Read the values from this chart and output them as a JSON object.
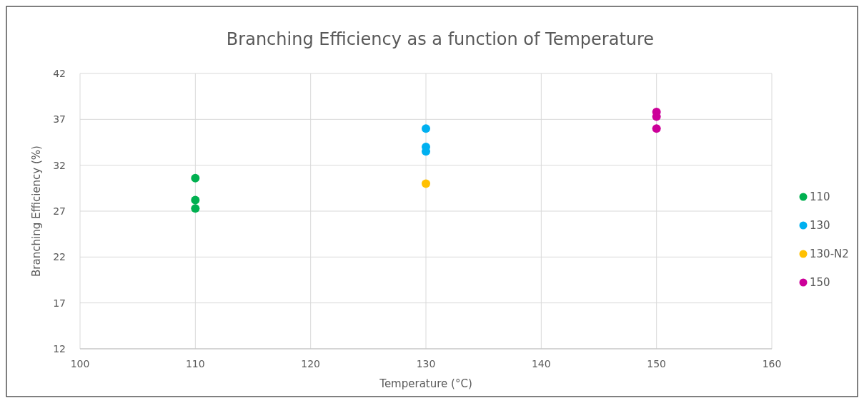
{
  "chart_data": {
    "type": "scatter",
    "title": "Branching Efficiency as a function of Temperature",
    "xlabel": "Temperature (°C)",
    "ylabel": "Branching Efficiency (%)",
    "xlim": [
      100,
      160
    ],
    "xticks": [
      100,
      110,
      120,
      130,
      140,
      150,
      160
    ],
    "ylim": [
      12,
      42
    ],
    "yticks": [
      12,
      17,
      22,
      27,
      32,
      37,
      42
    ],
    "grid": true,
    "legend": "right",
    "marker": "circle",
    "series": [
      {
        "name": "110",
        "color": "#00b050",
        "x": [
          110,
          110,
          110
        ],
        "values": [
          30.6,
          28.2,
          27.3
        ]
      },
      {
        "name": "130",
        "color": "#00b0f0",
        "x": [
          130,
          130,
          130
        ],
        "values": [
          36.0,
          34.0,
          33.5
        ]
      },
      {
        "name": "130-N2",
        "color": "#ffc000",
        "x": [
          130
        ],
        "values": [
          30.0
        ]
      },
      {
        "name": "150",
        "color": "#cc0099",
        "x": [
          150,
          150,
          150
        ],
        "values": [
          37.8,
          37.3,
          36.0
        ]
      }
    ]
  }
}
